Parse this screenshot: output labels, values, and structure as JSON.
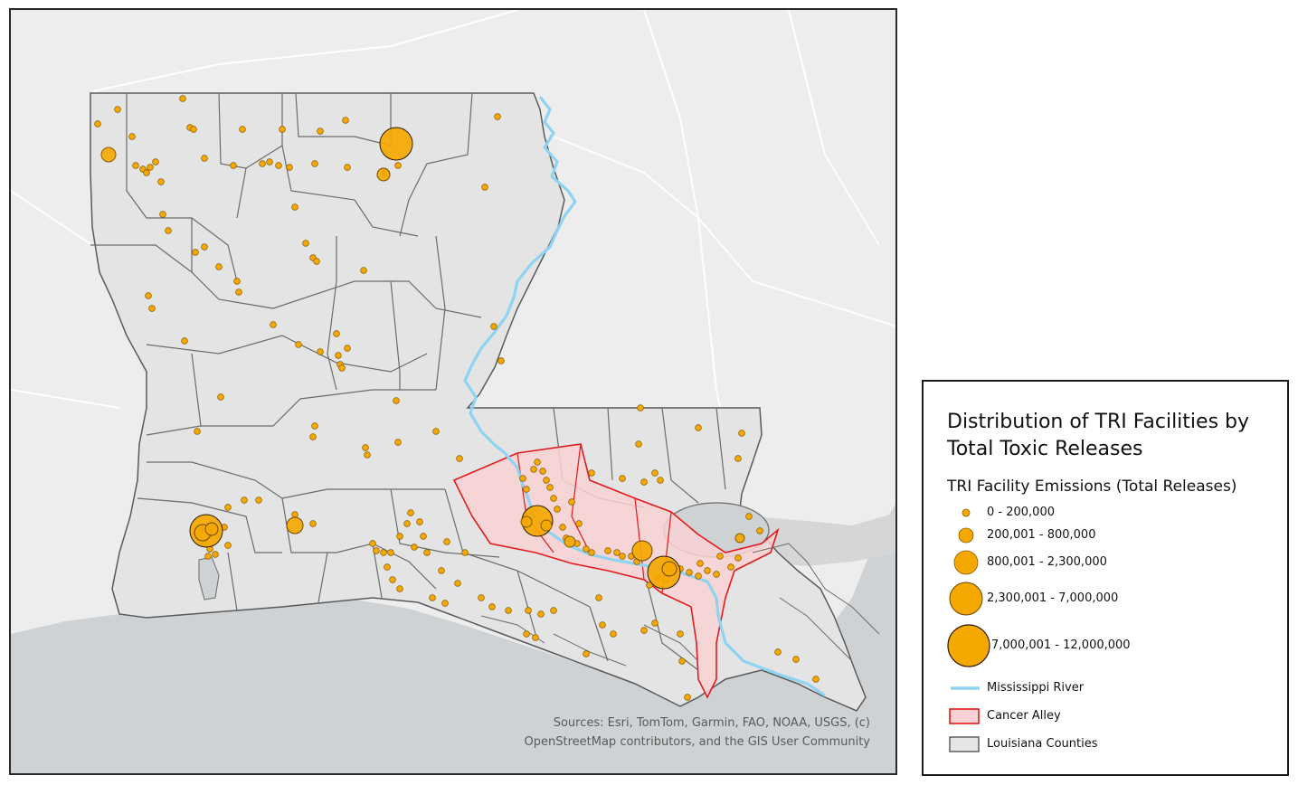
{
  "legend": {
    "title_line1": "Distribution of TRI Facilities by",
    "title_line2": "Total Toxic Releases",
    "subtitle": "TRI Facility Emissions (Total Releases)",
    "emission_classes": [
      {
        "label": "0 - 200,000"
      },
      {
        "label": "200,001 - 800,000"
      },
      {
        "label": "800,001 - 2,300,000"
      },
      {
        "label": "2,300,001 - 7,000,000"
      },
      {
        "label": "7,000,001 - 12,000,000"
      }
    ],
    "layers": [
      {
        "label": "Mississippi River",
        "color": "#8fd3f2"
      },
      {
        "label": "Cancer Alley",
        "color": "#e41a1c",
        "fill": "#f8d2d4"
      },
      {
        "label": "Louisiana Counties",
        "color": "#555555",
        "fill": "#e6e6e6"
      }
    ]
  },
  "attribution": {
    "line1": "Sources:  Esri, TomTom, Garmin, FAO, NOAA, USGS, (c)",
    "line2": "OpenStreetMap contributors, and the GIS User Community"
  },
  "colors": {
    "facility": "#f5a800",
    "facility_stroke": "#8a5a00",
    "state_fill": "#e4e4e4",
    "water": "#cfd2d4",
    "land_bg": "#ededed"
  }
}
